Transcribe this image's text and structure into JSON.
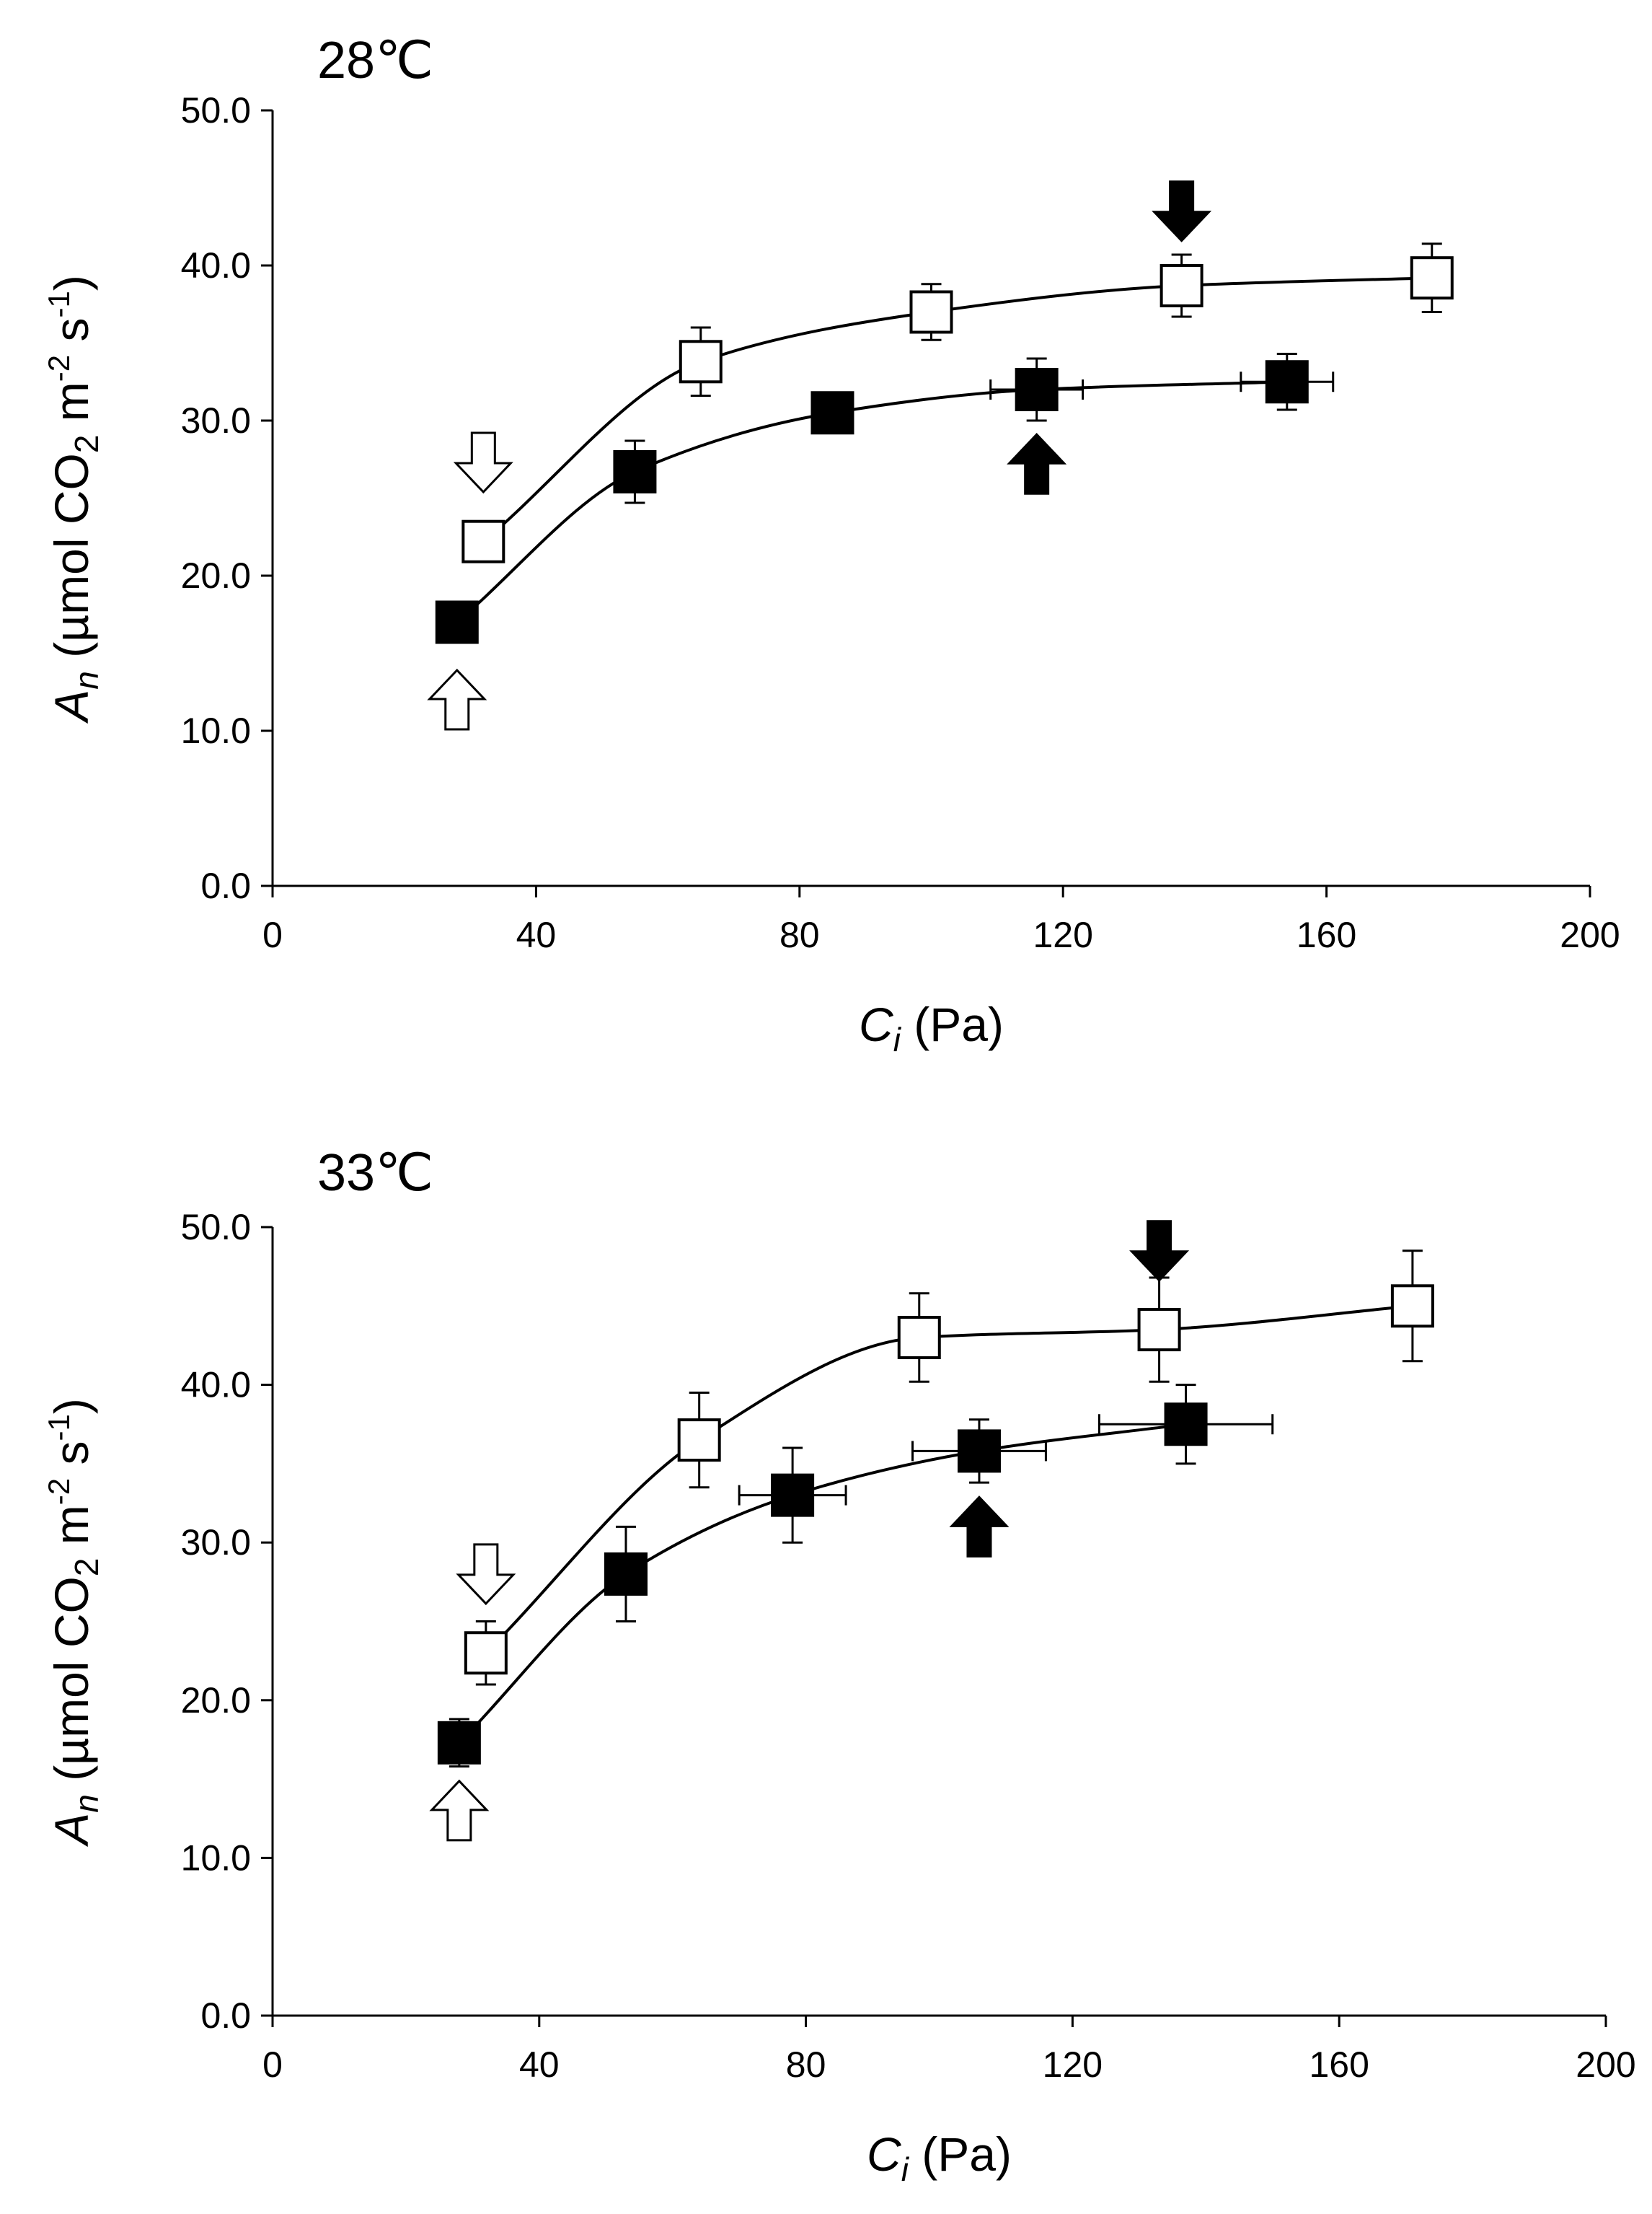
{
  "chart_data": [
    {
      "type": "scatter",
      "title": "28℃",
      "xlabel": {
        "var": "C",
        "sub": "i",
        "unit": "(Pa)"
      },
      "ylabel": {
        "var": "A",
        "sub": "n",
        "pre": "(µmol CO",
        "co2sub": "2",
        "mid": " m",
        "sup1": "-2",
        "mid2": " s",
        "sup2": "-1",
        "post": ")"
      },
      "xlim": [
        0,
        200
      ],
      "ylim": [
        0,
        50
      ],
      "xticks": [
        0,
        40,
        80,
        120,
        160,
        200
      ],
      "yticks": [
        0,
        10,
        20,
        30,
        40,
        50
      ],
      "xtick_labels": [
        "0",
        "40",
        "80",
        "120",
        "160",
        "200"
      ],
      "ytick_labels": [
        "0.0",
        "10.0",
        "20.0",
        "30.0",
        "40.0",
        "50.0"
      ],
      "grid": false,
      "series": [
        {
          "name": "open squares",
          "marker": "open-square",
          "x": [
            32,
            65,
            100,
            138,
            176
          ],
          "y": [
            22.2,
            33.8,
            37.0,
            38.7,
            39.2
          ],
          "yerr": [
            1.3,
            2.2,
            1.8,
            2.0,
            2.2
          ],
          "xerr": [
            0,
            0,
            0,
            0,
            0
          ]
        },
        {
          "name": "filled squares",
          "marker": "filled-square",
          "x": [
            28,
            55,
            85,
            116,
            154
          ],
          "y": [
            17.0,
            26.7,
            30.5,
            32.0,
            32.5
          ],
          "yerr": [
            1.0,
            2.0,
            1.0,
            2.0,
            1.8
          ],
          "xerr": [
            0,
            0,
            2,
            7,
            7
          ]
        }
      ],
      "arrows": [
        {
          "style": "filled",
          "direction": "down",
          "x": 138,
          "y": 43.5
        },
        {
          "style": "filled",
          "direction": "up",
          "x": 116,
          "y": 27.2
        },
        {
          "style": "open",
          "direction": "down",
          "x": 32,
          "y": 27.3
        },
        {
          "style": "open",
          "direction": "up",
          "x": 28,
          "y": 12.0
        }
      ]
    },
    {
      "type": "scatter",
      "title": "33℃",
      "xlabel": {
        "var": "C",
        "sub": "i",
        "unit": "(Pa)"
      },
      "ylabel": {
        "var": "A",
        "sub": "n",
        "pre": "(µmol CO",
        "co2sub": "2",
        "mid": " m",
        "sup1": "-2",
        "mid2": " s",
        "sup2": "-1",
        "post": ")"
      },
      "xlim": [
        0,
        200
      ],
      "ylim": [
        0,
        50
      ],
      "xticks": [
        0,
        40,
        80,
        120,
        160,
        200
      ],
      "yticks": [
        0,
        10,
        20,
        30,
        40,
        50
      ],
      "xtick_labels": [
        "0",
        "40",
        "80",
        "120",
        "160",
        "200"
      ],
      "ytick_labels": [
        "0.0",
        "10.0",
        "20.0",
        "30.0",
        "40.0",
        "50.0"
      ],
      "grid": false,
      "series": [
        {
          "name": "open squares",
          "marker": "open-square",
          "x": [
            32,
            64,
            97,
            133,
            171
          ],
          "y": [
            23.0,
            36.5,
            43.0,
            43.5,
            45.0
          ],
          "yerr": [
            2.0,
            3.0,
            2.8,
            3.3,
            3.5
          ],
          "xerr": [
            0,
            0,
            0,
            0,
            0
          ]
        },
        {
          "name": "filled squares",
          "marker": "filled-square",
          "x": [
            28,
            53,
            78,
            106,
            137
          ],
          "y": [
            17.3,
            28.0,
            33.0,
            35.8,
            37.5
          ],
          "yerr": [
            1.5,
            3.0,
            3.0,
            2.0,
            2.5
          ],
          "xerr": [
            0,
            0,
            8,
            10,
            13
          ]
        }
      ],
      "arrows": [
        {
          "style": "filled",
          "direction": "down",
          "x": 133,
          "y": 48.5
        },
        {
          "style": "filled",
          "direction": "up",
          "x": 106,
          "y": 31.0
        },
        {
          "style": "open",
          "direction": "down",
          "x": 32,
          "y": 28.0
        },
        {
          "style": "open",
          "direction": "up",
          "x": 28,
          "y": 13.0
        }
      ]
    }
  ]
}
